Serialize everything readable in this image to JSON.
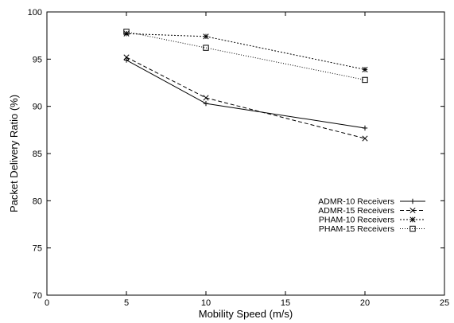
{
  "chart_data": {
    "type": "line",
    "title": "",
    "xlabel": "Mobility Speed (m/s)",
    "ylabel": "Packet Delivery Ratio (%)",
    "xlim": [
      0,
      25
    ],
    "ylim": [
      70,
      100
    ],
    "xticks": [
      0,
      5,
      10,
      15,
      20,
      25
    ],
    "yticks": [
      70,
      75,
      80,
      85,
      90,
      95,
      100
    ],
    "grid": false,
    "legend_position": "right",
    "x": [
      5,
      10,
      20
    ],
    "series": [
      {
        "name": "ADMR-10 Receivers",
        "values": [
          94.9,
          90.3,
          87.7
        ],
        "marker": "plus",
        "dash": "solid"
      },
      {
        "name": "ADMR-15 Receivers",
        "values": [
          95.2,
          90.9,
          86.6
        ],
        "marker": "cross",
        "dash": "dashed"
      },
      {
        "name": "PHAM-10 Receivers",
        "values": [
          97.7,
          97.4,
          93.9
        ],
        "marker": "star",
        "dash": "densely-dotted"
      },
      {
        "name": "PHAM-15 Receivers",
        "values": [
          97.9,
          96.2,
          92.8
        ],
        "marker": "square",
        "dash": "dotted"
      }
    ]
  }
}
